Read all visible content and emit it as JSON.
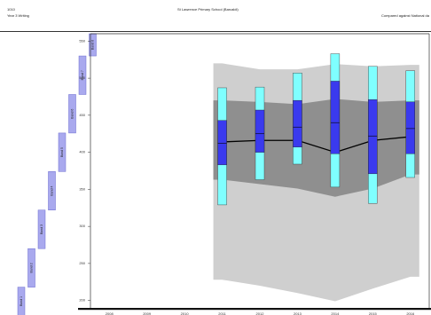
{
  "header": {
    "code": "1010",
    "subject": "Year 3 Writing",
    "school": "St Lawrence Primary School (Barcaldi)",
    "comparison": "Compared against National da"
  },
  "bands": [
    {
      "label": "Band 1",
      "low": 180,
      "high": 218
    },
    {
      "label": "Band 2",
      "low": 218,
      "high": 270
    },
    {
      "label": "Band 3",
      "low": 270,
      "high": 322
    },
    {
      "label": "Band 4",
      "low": 322,
      "high": 374
    },
    {
      "label": "Band 5",
      "low": 374,
      "high": 426
    },
    {
      "label": "Band 6",
      "low": 426,
      "high": 478
    },
    {
      "label": "Band 7",
      "low": 478,
      "high": 530
    },
    {
      "label": "Band 8",
      "low": 530,
      "high": 560
    }
  ],
  "colors": {
    "band": "#a9a9ee",
    "band_border": "#6a6ad0",
    "outer_range": "#cfcfcf",
    "inner_range": "#8f8f8f",
    "box_outer": "#7fffff",
    "box_inner": "#3a3aee",
    "median_line": "#000000"
  },
  "chart_data": {
    "type": "box",
    "title": "",
    "xlabel": "",
    "ylabel": "",
    "ylim": [
      190,
      560
    ],
    "yticks": [
      200,
      250,
      300,
      350,
      400,
      450,
      500,
      550
    ],
    "categories": [
      "2008",
      "2009",
      "2010",
      "2011",
      "2012",
      "2013",
      "2014",
      "2015",
      "2016"
    ],
    "school_boxes": [
      {
        "year": "2011",
        "p10": 329,
        "p25": 383,
        "median": 412,
        "p75": 443,
        "p90": 487
      },
      {
        "year": "2012",
        "p10": 363,
        "p25": 400,
        "median": 425,
        "p75": 457,
        "p90": 488
      },
      {
        "year": "2013",
        "p10": 384,
        "p25": 407,
        "median": 434,
        "p75": 470,
        "p90": 507
      },
      {
        "year": "2014",
        "p10": 353,
        "p25": 398,
        "median": 440,
        "p75": 496,
        "p90": 533
      },
      {
        "year": "2015",
        "p10": 331,
        "p25": 371,
        "median": 422,
        "p75": 471,
        "p90": 516
      },
      {
        "year": "2016",
        "p10": 366,
        "p25": 398,
        "median": 432,
        "p75": 468,
        "p90": 510
      }
    ],
    "national_outer": {
      "years": [
        "2011",
        "2012",
        "2013",
        "2014",
        "2015",
        "2016"
      ],
      "low": [
        228,
        220,
        210,
        199,
        216,
        232
      ],
      "high": [
        520,
        512,
        512,
        519,
        516,
        518
      ]
    },
    "national_inner": {
      "years": [
        "2011",
        "2012",
        "2013",
        "2014",
        "2015",
        "2016"
      ],
      "low": [
        363,
        357,
        351,
        340,
        351,
        370
      ],
      "high": [
        470,
        468,
        465,
        472,
        468,
        470
      ]
    },
    "median_line": {
      "years": [
        "2011",
        "2012",
        "2013",
        "2014",
        "2015",
        "2016"
      ],
      "values": [
        414,
        416,
        416,
        400,
        416,
        421
      ]
    }
  }
}
